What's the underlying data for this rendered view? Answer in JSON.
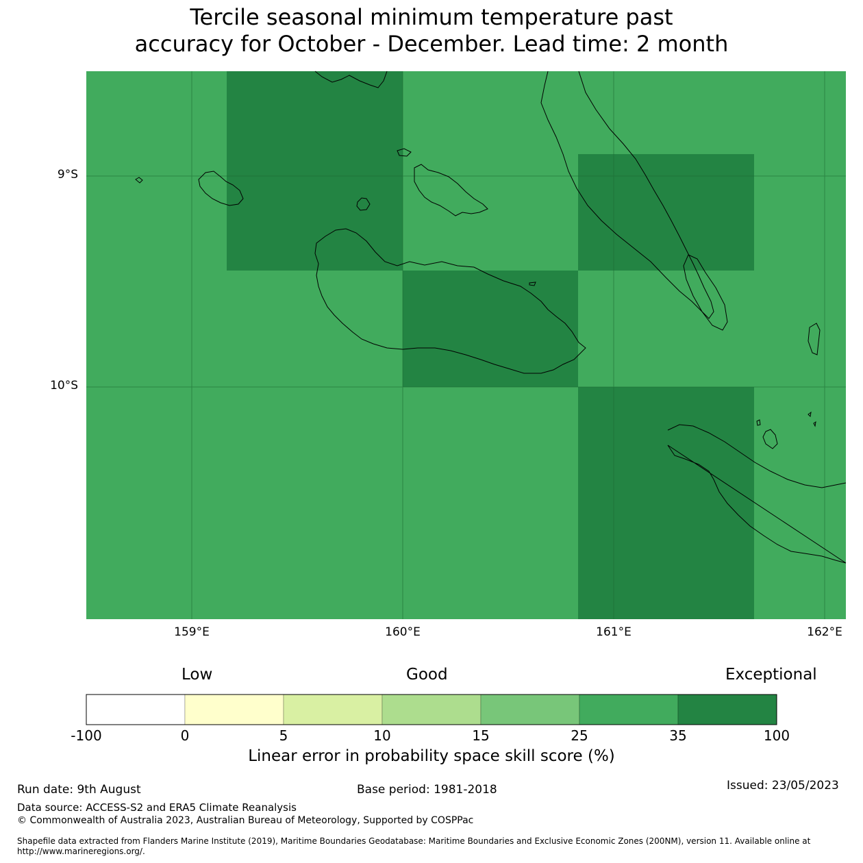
{
  "title_line1": "Tercile seasonal minimum temperature past",
  "title_line2": "accuracy for October - December. Lead time: 2 month",
  "map": {
    "lon_range": [
      158.5,
      162.1
    ],
    "lat_range": [
      -11.1,
      -8.5
    ],
    "x_ticks": [
      "159°E",
      "160°E",
      "161°E",
      "162°E"
    ],
    "y_ticks": [
      "9°S",
      "10°S"
    ],
    "grid": true,
    "background_category": "25 to 35",
    "highlight_category": "35 to 100"
  },
  "colorbar": {
    "categories": [
      "Low",
      "Good",
      "Exceptional"
    ],
    "ticks": [
      "-100",
      "0",
      "5",
      "10",
      "15",
      "25",
      "35",
      "100"
    ],
    "colors": [
      "#ffffff",
      "#ffffcc",
      "#d9f0a3",
      "#addd8e",
      "#78c679",
      "#41ab5d",
      "#238443"
    ],
    "label": "Linear error in probability space skill score (%)"
  },
  "footer": {
    "run_date": "Run date: 9th August",
    "base_period": "Base period: 1981-2018",
    "issued": "Issued: 23/05/2023",
    "data_source": "Data source: ACCESS-S2 and ERA5 Climate Reanalysis",
    "copyright": "© Commonwealth of Australia 2023, Australian Bureau of Meteorology, Supported by COSPPac",
    "shapefile_line1": "Shapefile data extracted from Flanders Marine Institute (2019), Maritime Boundaries Geodatabase: Maritime Boundaries and Exclusive Economic Zones (200NM), version 11. Available online at",
    "shapefile_line2": "http://www.marineregions.org/."
  }
}
